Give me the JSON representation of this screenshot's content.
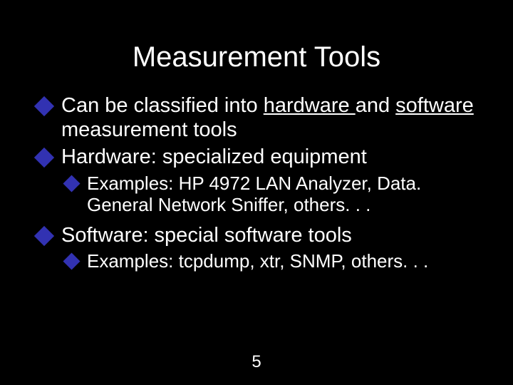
{
  "slide": {
    "background_color": "#000000",
    "text_color": "#ffffff",
    "bullet_color": "#3232b2",
    "title_fontsize": 40,
    "l1_fontsize": 29,
    "l2_fontsize": 26,
    "pagenum_fontsize": 24
  },
  "title": "Measurement Tools",
  "b1": {
    "pre": "Can be classified into ",
    "u1": "hardware ",
    "mid": "and ",
    "u2": "software ",
    "post": "measurement tools"
  },
  "b2": "Hardware: specialized equipment",
  "b2a": "Examples: HP 4972 LAN Analyzer, Data. General Network Sniffer, others. . .",
  "b3": "Software: special software tools",
  "b3a": "Examples: tcpdump, xtr, SNMP, others. . .",
  "page_number": "5"
}
